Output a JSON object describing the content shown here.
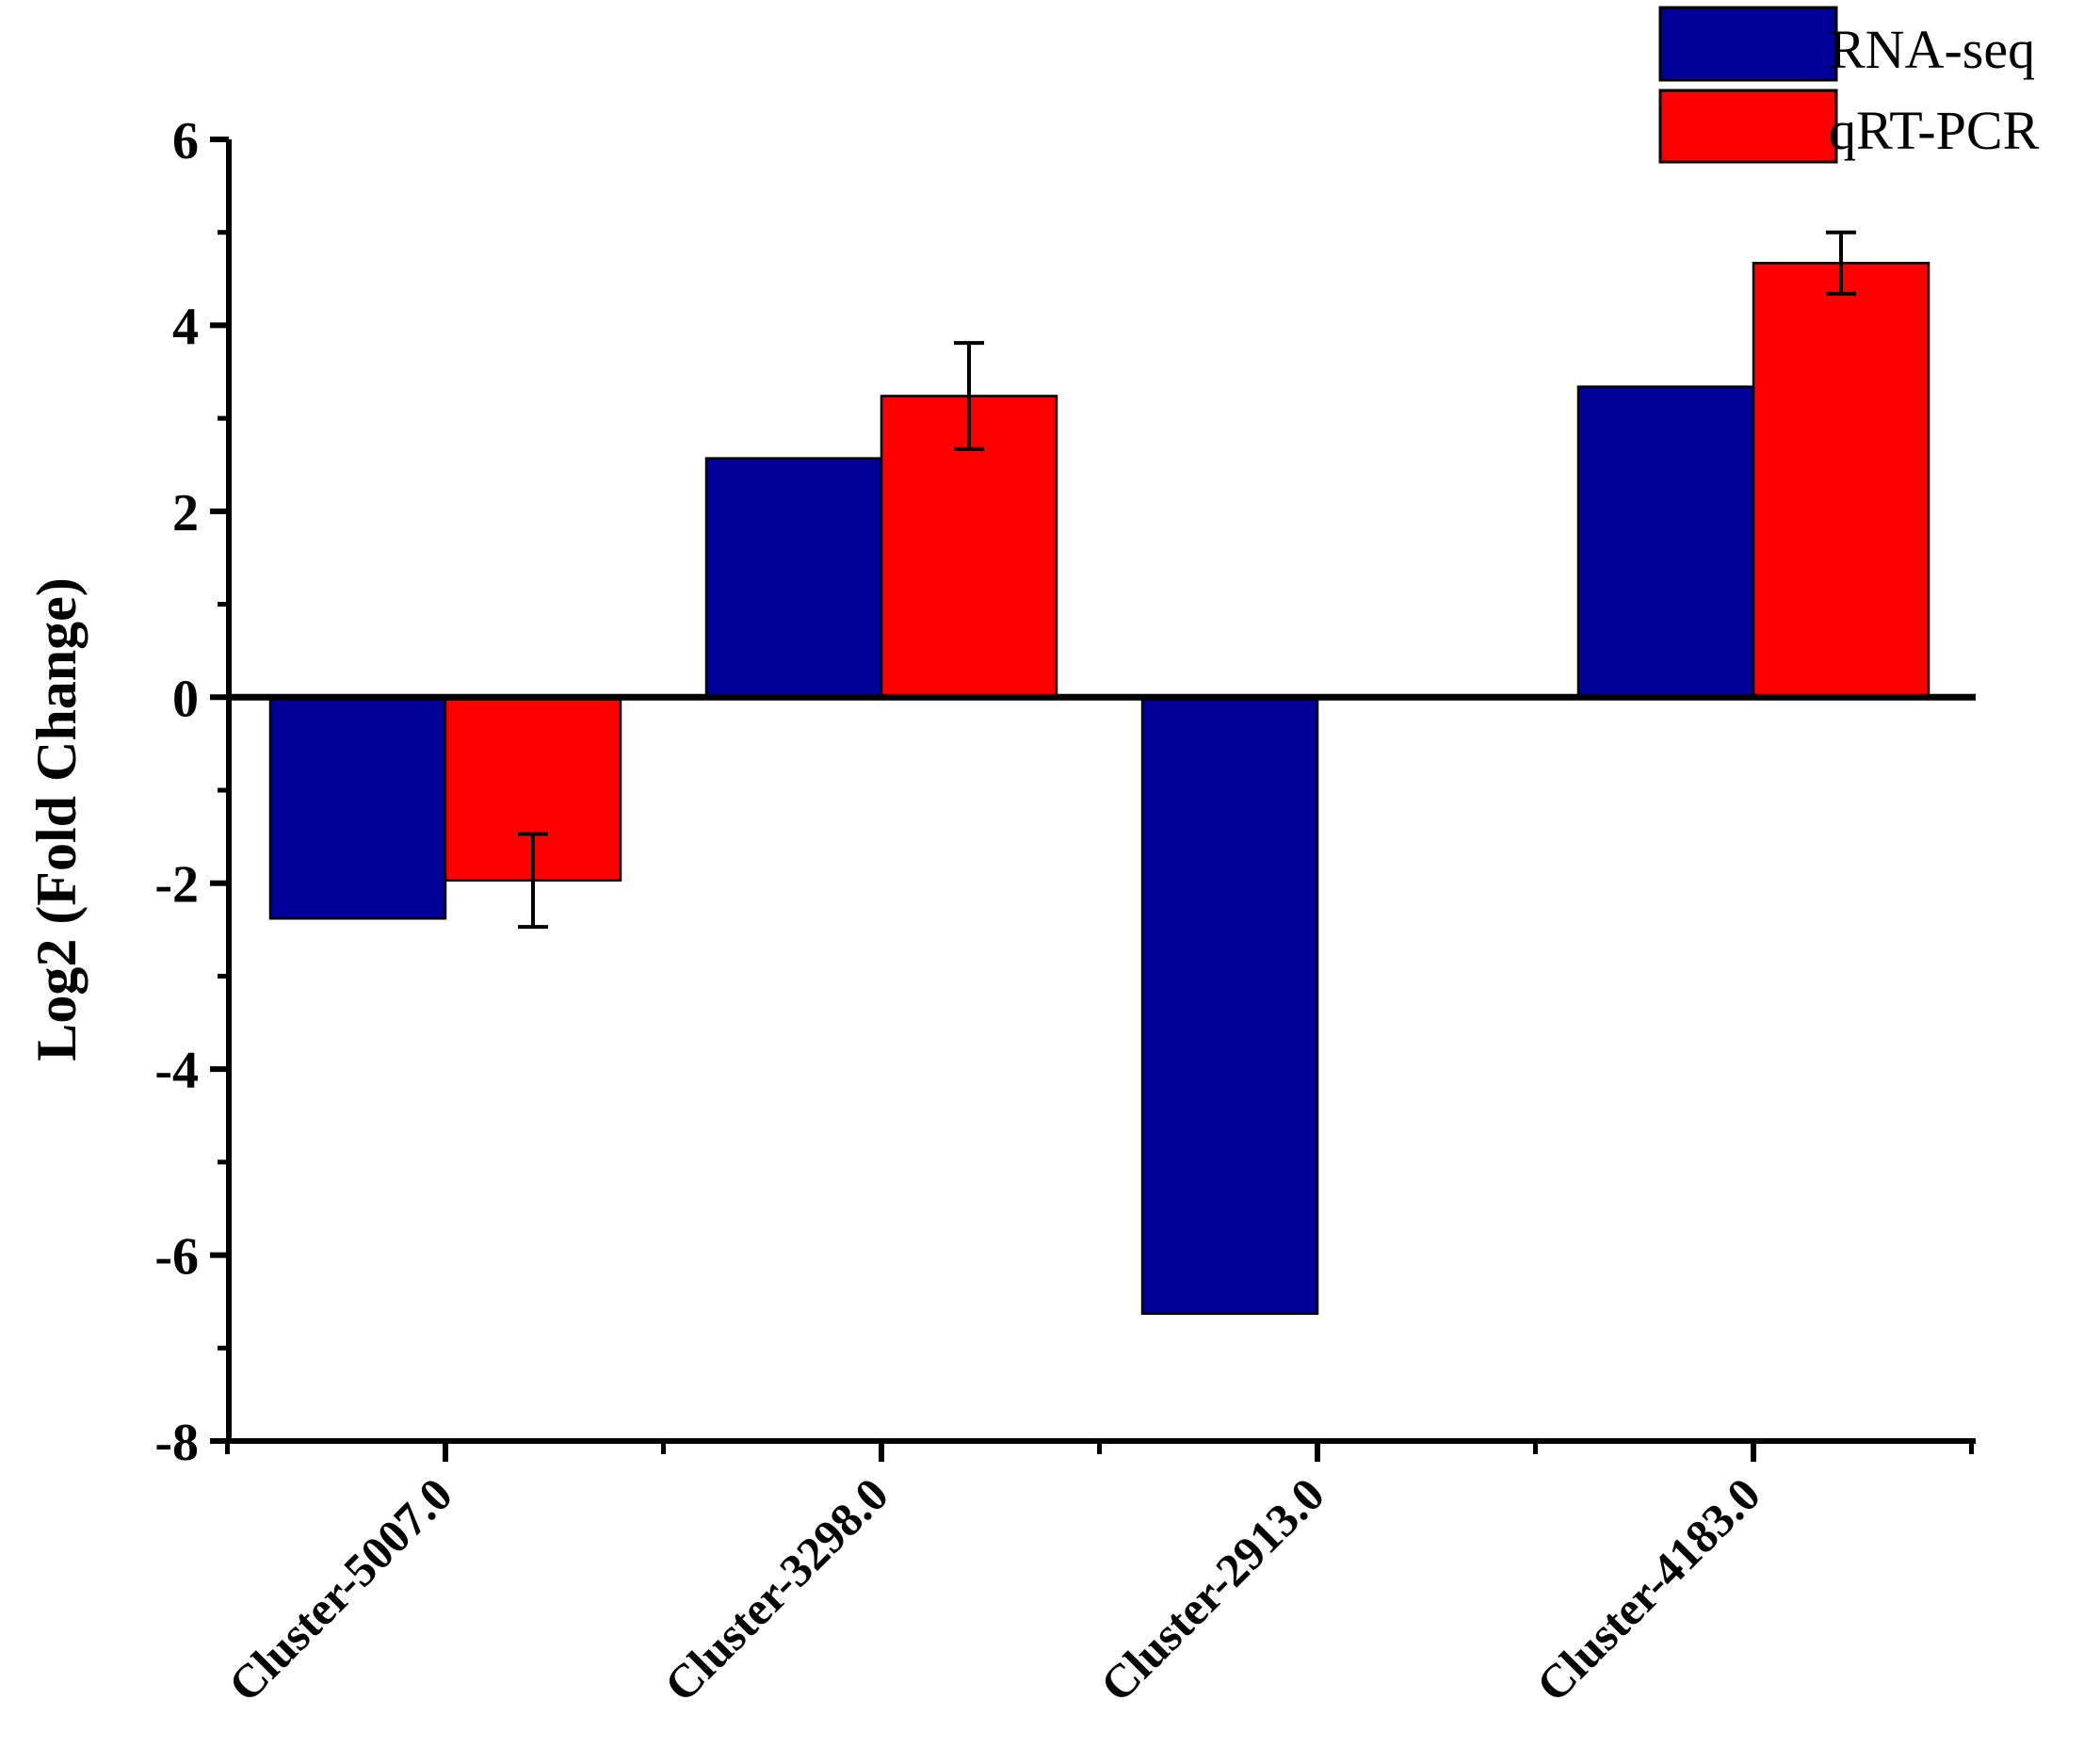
{
  "colors": {
    "rna_seq": "#000099",
    "qrt_pcr": "#ff0000",
    "axis": "#000000"
  },
  "chart_data": {
    "type": "bar",
    "title": "",
    "xlabel": "",
    "ylabel": "Log2 (Fold Change)",
    "categories": [
      "Cluster-5007.0",
      "Cluster-3298.0",
      "Cluster-2913.0",
      "Cluster-4183.0"
    ],
    "series": [
      {
        "name": "RNA-seq",
        "values": [
          -2.38,
          2.57,
          -6.63,
          3.34
        ]
      },
      {
        "name": "qRT-PCR",
        "values": [
          -1.97,
          3.24,
          null,
          4.67
        ],
        "errors": [
          0.5,
          0.57,
          null,
          0.33
        ]
      }
    ],
    "ylim": [
      -8,
      6
    ],
    "yticks": [
      -8,
      -6,
      -4,
      -2,
      0,
      2,
      4,
      6
    ],
    "yticklabels": [
      "-8",
      "-6",
      "-4",
      "-2",
      "0",
      "2",
      "4",
      "6"
    ],
    "legend_position": "top-right",
    "grid": false
  }
}
